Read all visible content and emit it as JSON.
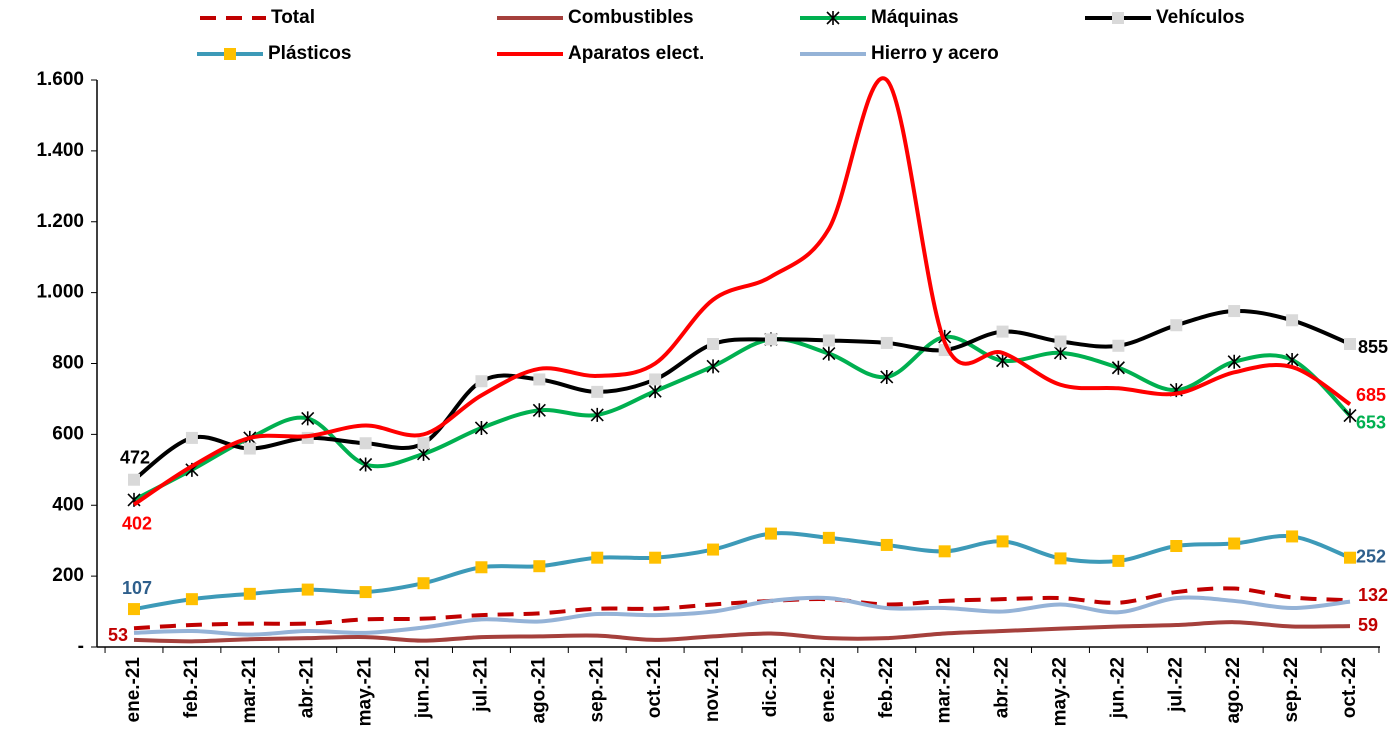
{
  "chart_data": {
    "type": "line",
    "categories": [
      "ene.-21",
      "feb.-21",
      "mar.-21",
      "abr.-21",
      "may.-21",
      "jun.-21",
      "jul.-21",
      "ago.-21",
      "sep.-21",
      "oct.-21",
      "nov.-21",
      "dic.-21",
      "ene.-22",
      "feb.-22",
      "mar.-22",
      "abr.-22",
      "may.-22",
      "jun.-22",
      "jul.-22",
      "ago.-22",
      "sep.-22",
      "oct.-22"
    ],
    "ylim": [
      0,
      1600
    ],
    "yticks": [
      {
        "value": 0,
        "label": "-"
      },
      200,
      400,
      600,
      800,
      {
        "value": 1000,
        "label": "1.000"
      },
      {
        "value": 1200,
        "label": "1.200"
      },
      {
        "value": 1400,
        "label": "1.400"
      },
      {
        "value": 1600,
        "label": "1.600"
      }
    ],
    "series": [
      {
        "name": "Total",
        "color": "#c00000",
        "dash": true,
        "values": [
          53,
          62,
          66,
          66,
          78,
          80,
          90,
          95,
          108,
          108,
          120,
          130,
          135,
          120,
          130,
          135,
          138,
          125,
          155,
          165,
          140,
          132
        ],
        "value_labels": [
          "53",
          null,
          null,
          null,
          null,
          null,
          null,
          null,
          null,
          null,
          null,
          null,
          null,
          null,
          null,
          null,
          null,
          null,
          null,
          null,
          null,
          "132"
        ]
      },
      {
        "name": "Combustibles",
        "color": "#a5403c",
        "values": [
          20,
          16,
          22,
          25,
          28,
          18,
          28,
          30,
          32,
          20,
          30,
          38,
          25,
          25,
          38,
          45,
          52,
          58,
          62,
          70,
          58,
          59
        ],
        "value_labels": [
          null,
          null,
          null,
          null,
          null,
          null,
          null,
          null,
          null,
          null,
          null,
          null,
          null,
          null,
          null,
          null,
          null,
          null,
          null,
          null,
          null,
          "59"
        ]
      },
      {
        "name": "Máquinas",
        "color": "#00b050",
        "marker": "star",
        "values": [
          415,
          500,
          590,
          645,
          515,
          545,
          618,
          668,
          655,
          722,
          792,
          868,
          828,
          762,
          875,
          808,
          830,
          788,
          725,
          805,
          810,
          653
        ],
        "value_labels": [
          null,
          null,
          null,
          null,
          null,
          null,
          null,
          null,
          null,
          null,
          null,
          null,
          null,
          null,
          null,
          null,
          null,
          null,
          null,
          null,
          null,
          "653"
        ]
      },
      {
        "name": "Vehículos",
        "color": "#000000",
        "marker": "square",
        "marker_color": "#d9d9d9",
        "values": [
          472,
          590,
          560,
          590,
          575,
          575,
          750,
          755,
          720,
          755,
          855,
          868,
          865,
          858,
          838,
          890,
          862,
          850,
          908,
          948,
          922,
          855
        ],
        "value_labels": [
          "472",
          null,
          null,
          null,
          null,
          null,
          null,
          null,
          null,
          null,
          null,
          null,
          null,
          null,
          null,
          null,
          null,
          null,
          null,
          null,
          null,
          "855"
        ]
      },
      {
        "name": "Plásticos",
        "color": "#3d9ab8",
        "marker": "square",
        "marker_color": "#ffc000",
        "values": [
          107,
          135,
          150,
          162,
          155,
          180,
          225,
          228,
          252,
          252,
          275,
          320,
          308,
          288,
          270,
          298,
          250,
          243,
          285,
          292,
          312,
          252
        ],
        "value_labels": [
          "107",
          null,
          null,
          null,
          null,
          null,
          null,
          null,
          null,
          null,
          null,
          null,
          null,
          null,
          null,
          null,
          null,
          null,
          null,
          null,
          null,
          "252"
        ]
      },
      {
        "name": "Aparatos elect.",
        "color": "#ff0000",
        "values": [
          402,
          510,
          590,
          595,
          625,
          600,
          710,
          785,
          765,
          800,
          980,
          1045,
          1180,
          1600,
          860,
          830,
          740,
          730,
          715,
          775,
          790,
          685
        ],
        "value_labels": [
          "402",
          null,
          null,
          null,
          null,
          null,
          null,
          null,
          null,
          null,
          null,
          null,
          null,
          null,
          null,
          null,
          null,
          null,
          null,
          null,
          null,
          "685"
        ]
      },
      {
        "name": "Hierro y acero",
        "color": "#95b3d7",
        "values": [
          40,
          45,
          35,
          45,
          40,
          55,
          78,
          72,
          93,
          90,
          100,
          130,
          138,
          110,
          110,
          100,
          120,
          98,
          138,
          130,
          110,
          128
        ],
        "value_labels": [
          null,
          null,
          null,
          null,
          null,
          null,
          null,
          null,
          null,
          null,
          null,
          null,
          null,
          null,
          null,
          null,
          null,
          null,
          null,
          null,
          null,
          null
        ]
      }
    ]
  }
}
